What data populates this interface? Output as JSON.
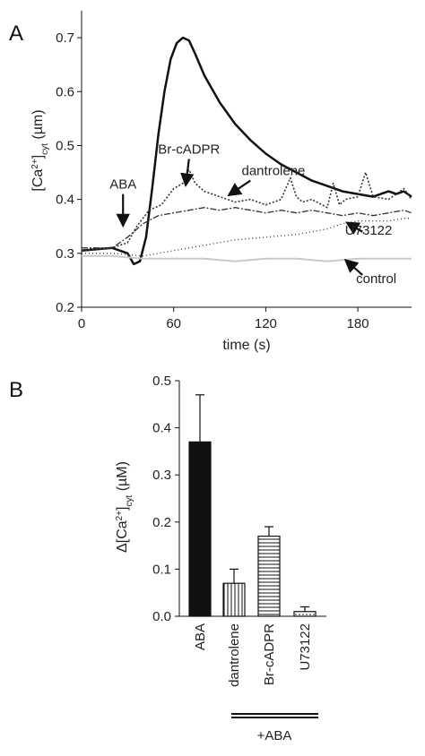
{
  "panel_labels": [
    "A",
    "B"
  ],
  "chart_data": [
    {
      "type": "line",
      "panel": "A",
      "xlabel": "time (s)",
      "ylabel": "[Ca²⁺]cyt (µm)",
      "ylabel_parts": {
        "main": "[Ca",
        "sup": "2+",
        "close": "]",
        "sub": "cyt",
        "unit": " (µm)"
      },
      "xlim": [
        0,
        215
      ],
      "ylim": [
        0.2,
        0.75
      ],
      "xticks": [
        0,
        60,
        120,
        180
      ],
      "xtick_labels": [
        "0",
        "60",
        "120",
        "180"
      ],
      "yticks": [
        0.2,
        0.3,
        0.4,
        0.5,
        0.6,
        0.7
      ],
      "ytick_labels": [
        "0.2",
        "0.3",
        "0.4",
        "0.5",
        "0.6",
        "0.7"
      ],
      "grid": false,
      "series": [
        {
          "style": "solid-thick",
          "color": "#111111",
          "x": [
            0,
            20,
            30,
            34,
            38,
            42,
            46,
            50,
            54,
            58,
            62,
            66,
            70,
            74,
            80,
            90,
            100,
            110,
            120,
            130,
            140,
            150,
            160,
            170,
            180,
            190,
            200,
            205,
            210,
            215
          ],
          "y": [
            0.305,
            0.31,
            0.3,
            0.28,
            0.285,
            0.33,
            0.42,
            0.52,
            0.6,
            0.66,
            0.69,
            0.7,
            0.695,
            0.67,
            0.63,
            0.58,
            0.54,
            0.51,
            0.485,
            0.465,
            0.45,
            0.435,
            0.425,
            0.415,
            0.41,
            0.405,
            0.415,
            0.41,
            0.415,
            0.405
          ]
        },
        {
          "style": "dotted",
          "color": "#333333",
          "x": [
            0,
            20,
            30,
            36,
            44,
            52,
            60,
            66,
            70,
            74,
            80,
            90,
            100,
            110,
            120,
            130,
            136,
            140,
            144,
            150,
            160,
            164,
            168,
            172,
            180,
            185,
            190,
            200,
            210,
            215
          ],
          "y": [
            0.305,
            0.31,
            0.32,
            0.35,
            0.38,
            0.39,
            0.42,
            0.43,
            0.455,
            0.43,
            0.415,
            0.405,
            0.395,
            0.4,
            0.39,
            0.4,
            0.44,
            0.405,
            0.395,
            0.4,
            0.385,
            0.43,
            0.39,
            0.4,
            0.405,
            0.45,
            0.405,
            0.4,
            0.42,
            0.4
          ]
        },
        {
          "style": "dash-dot",
          "color": "#333333",
          "x": [
            0,
            20,
            30,
            40,
            50,
            60,
            70,
            80,
            90,
            100,
            110,
            120,
            130,
            140,
            150,
            160,
            170,
            180,
            190,
            200,
            210,
            215
          ],
          "y": [
            0.31,
            0.31,
            0.33,
            0.355,
            0.37,
            0.375,
            0.38,
            0.385,
            0.38,
            0.385,
            0.38,
            0.375,
            0.38,
            0.375,
            0.38,
            0.375,
            0.37,
            0.375,
            0.37,
            0.375,
            0.38,
            0.375
          ]
        },
        {
          "style": "fine-dotted",
          "color": "#333333",
          "x": [
            0,
            20,
            40,
            50,
            60,
            80,
            100,
            120,
            140,
            160,
            170,
            180,
            190,
            200,
            210,
            215
          ],
          "y": [
            0.3,
            0.3,
            0.295,
            0.3,
            0.305,
            0.315,
            0.325,
            0.33,
            0.335,
            0.345,
            0.355,
            0.36,
            0.36,
            0.36,
            0.365,
            0.365
          ]
        },
        {
          "style": "light",
          "color": "#c8c8c8",
          "x": [
            0,
            20,
            40,
            60,
            80,
            100,
            120,
            140,
            160,
            180,
            200,
            215
          ],
          "y": [
            0.295,
            0.295,
            0.29,
            0.29,
            0.29,
            0.285,
            0.29,
            0.29,
            0.285,
            0.29,
            0.29,
            0.29
          ]
        }
      ],
      "annotations": [
        {
          "text": "ABA",
          "text_x": 27,
          "text_y": 0.42,
          "arrow_from": [
            27,
            0.41
          ],
          "arrow_to": [
            27,
            0.355
          ]
        },
        {
          "text": "Br-cADPR",
          "text_x": 70,
          "text_y": 0.485,
          "arrow_from": [
            70,
            0.475
          ],
          "arrow_to": [
            68,
            0.43
          ]
        },
        {
          "text": "dantrolene",
          "text_x": 125,
          "text_y": 0.445,
          "arrow_from": [
            110,
            0.435
          ],
          "arrow_to": [
            97,
            0.41
          ]
        },
        {
          "text": "U73122",
          "text_x": 187,
          "text_y": 0.335,
          "arrow_from": [
            183,
            0.34
          ],
          "arrow_to": [
            174,
            0.355
          ]
        },
        {
          "text": "control",
          "text_x": 192,
          "text_y": 0.245,
          "arrow_from": [
            183,
            0.26
          ],
          "arrow_to": [
            173,
            0.285
          ]
        }
      ]
    },
    {
      "type": "bar",
      "panel": "B",
      "ylabel": "Δ[Ca²⁺]cyt (µM)",
      "ylabel_parts": {
        "main": "Δ[Ca",
        "sup": "2+",
        "close": "]",
        "sub": "cyt",
        "unit": " (µM)"
      },
      "ylim": [
        0,
        0.5
      ],
      "yticks": [
        0,
        0.1,
        0.2,
        0.3,
        0.4,
        0.5
      ],
      "ytick_labels": [
        "0.0",
        "0.1",
        "0.2",
        "0.3",
        "0.4",
        "0.5"
      ],
      "categories": [
        "ABA",
        "dantrolene",
        "Br-cADPR",
        "U73122"
      ],
      "values": [
        0.37,
        0.07,
        0.17,
        0.01
      ],
      "errors": [
        0.1,
        0.03,
        0.02,
        0.01
      ],
      "fills": [
        "solid",
        "vertical-lines",
        "horizontal-lines",
        "dots"
      ],
      "group_label": "+ABA",
      "group_categories": [
        "dantrolene",
        "Br-cADPR",
        "U73122"
      ]
    }
  ]
}
